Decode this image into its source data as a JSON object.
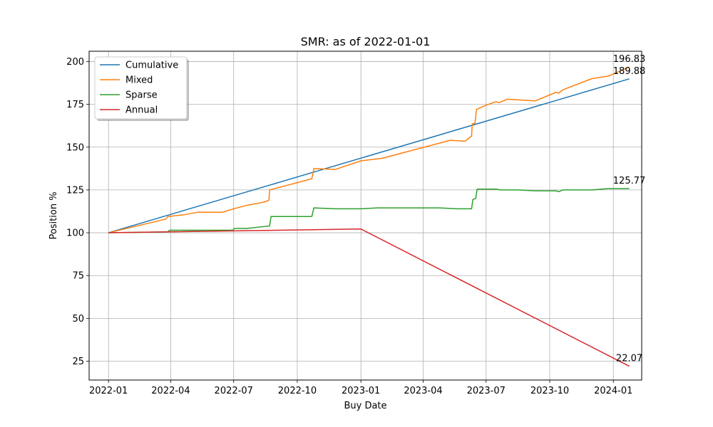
{
  "chart_data": {
    "type": "line",
    "title": "SMR: as of 2022-01-01",
    "xlabel": "Buy Date",
    "ylabel": "Position %",
    "x_range": [
      "2021-12-04",
      "2024-02-11"
    ],
    "ylim": [
      14,
      206
    ],
    "x_ticks": [
      {
        "date": "2022-01-01",
        "label": "2022-01"
      },
      {
        "date": "2022-04-01",
        "label": "2022-04"
      },
      {
        "date": "2022-07-01",
        "label": "2022-07"
      },
      {
        "date": "2022-10-01",
        "label": "2022-10"
      },
      {
        "date": "2023-01-01",
        "label": "2023-01"
      },
      {
        "date": "2023-04-01",
        "label": "2023-04"
      },
      {
        "date": "2023-07-01",
        "label": "2023-07"
      },
      {
        "date": "2023-10-01",
        "label": "2023-10"
      },
      {
        "date": "2024-01-01",
        "label": "2024-01"
      }
    ],
    "y_ticks": [
      25,
      50,
      75,
      100,
      125,
      150,
      175,
      200
    ],
    "grid": true,
    "legend_position": "upper-left",
    "series": [
      {
        "name": "Cumulative",
        "color": "#1f77b4",
        "points": [
          [
            "2022-01-01",
            100
          ],
          [
            "2024-01-24",
            189.88
          ]
        ]
      },
      {
        "name": "Mixed",
        "color": "#ff7f0e",
        "points": [
          [
            "2022-01-01",
            100
          ],
          [
            "2022-03-25",
            108
          ],
          [
            "2022-03-28",
            109.5
          ],
          [
            "2022-04-20",
            110.5
          ],
          [
            "2022-05-10",
            112
          ],
          [
            "2022-06-15",
            112
          ],
          [
            "2022-07-01",
            114
          ],
          [
            "2022-07-20",
            116
          ],
          [
            "2022-08-15",
            118
          ],
          [
            "2022-08-21",
            119
          ],
          [
            "2022-08-22",
            125
          ],
          [
            "2022-10-22",
            131.5
          ],
          [
            "2022-10-25",
            137.5
          ],
          [
            "2022-11-25",
            137
          ],
          [
            "2023-01-01",
            142
          ],
          [
            "2023-02-01",
            143.5
          ],
          [
            "2023-05-10",
            154
          ],
          [
            "2023-06-01",
            153.5
          ],
          [
            "2023-06-10",
            156.5
          ],
          [
            "2023-06-11",
            163.5
          ],
          [
            "2023-06-15",
            164
          ],
          [
            "2023-06-17",
            172
          ],
          [
            "2023-07-01",
            174.5
          ],
          [
            "2023-07-15",
            176.5
          ],
          [
            "2023-07-20",
            176
          ],
          [
            "2023-08-01",
            178
          ],
          [
            "2023-09-10",
            177
          ],
          [
            "2023-10-10",
            182
          ],
          [
            "2023-10-14",
            181.5
          ],
          [
            "2023-10-20",
            183.5
          ],
          [
            "2023-12-01",
            190
          ],
          [
            "2023-12-25",
            191.5
          ],
          [
            "2024-01-24",
            196.83
          ]
        ]
      },
      {
        "name": "Sparse",
        "color": "#2ca02c",
        "points": [
          [
            "2022-01-01",
            100
          ],
          [
            "2022-03-28",
            100.5
          ],
          [
            "2022-03-30",
            101.5
          ],
          [
            "2022-06-30",
            101.5
          ],
          [
            "2022-07-02",
            102.5
          ],
          [
            "2022-07-20",
            102.5
          ],
          [
            "2022-08-22",
            104
          ],
          [
            "2022-08-24",
            109.5
          ],
          [
            "2022-10-22",
            109.5
          ],
          [
            "2022-10-25",
            114.5
          ],
          [
            "2022-11-25",
            114
          ],
          [
            "2023-01-01",
            114
          ],
          [
            "2023-01-25",
            114.5
          ],
          [
            "2023-04-01",
            114.5
          ],
          [
            "2023-04-25",
            114.5
          ],
          [
            "2023-05-20",
            114
          ],
          [
            "2023-06-10",
            114
          ],
          [
            "2023-06-12",
            119.5
          ],
          [
            "2023-06-16",
            120
          ],
          [
            "2023-06-18",
            125.5
          ],
          [
            "2023-07-01",
            125.5
          ],
          [
            "2023-07-15",
            125.5
          ],
          [
            "2023-07-22",
            125
          ],
          [
            "2023-08-15",
            125
          ],
          [
            "2023-09-10",
            124.5
          ],
          [
            "2023-10-10",
            124.5
          ],
          [
            "2023-10-14",
            124
          ],
          [
            "2023-10-20",
            125
          ],
          [
            "2023-12-01",
            125
          ],
          [
            "2023-12-25",
            125.77
          ],
          [
            "2024-01-24",
            125.77
          ]
        ]
      },
      {
        "name": "Annual",
        "color": "#d62728",
        "points": [
          [
            "2022-01-01",
            100
          ],
          [
            "2023-01-01",
            102.2
          ],
          [
            "2024-01-24",
            22.07
          ]
        ]
      }
    ],
    "end_labels": [
      {
        "text": "196.83",
        "date": "2024-01-24",
        "value": 196.83
      },
      {
        "text": "189.88",
        "date": "2024-01-24",
        "value": 189.88
      },
      {
        "text": "125.77",
        "date": "2024-01-24",
        "value": 125.77
      },
      {
        "text": "22.07",
        "date": "2024-01-24",
        "value": 22.07
      }
    ]
  }
}
